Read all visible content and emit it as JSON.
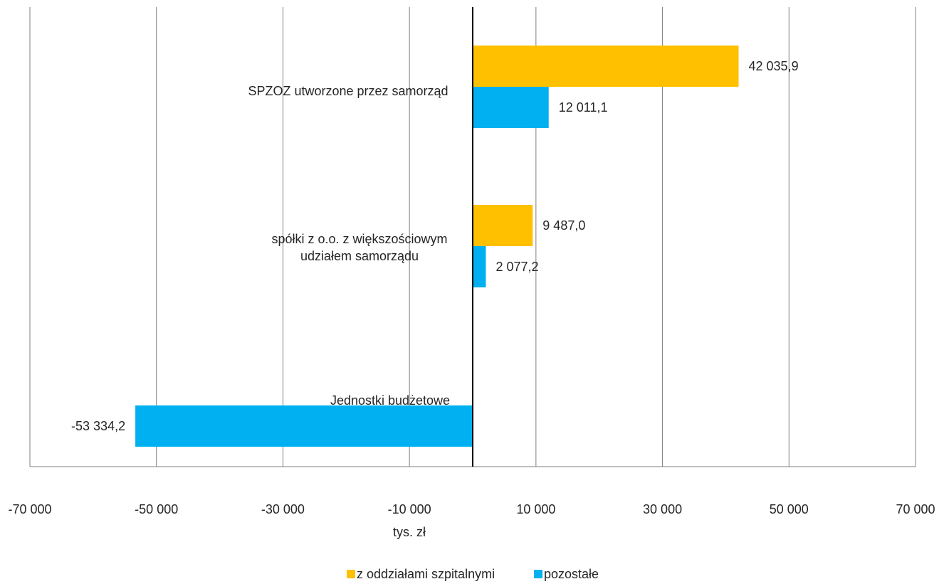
{
  "chart_data": {
    "type": "bar",
    "orientation": "horizontal",
    "categories": [
      "SPZOZ utworzone przez samorząd",
      "spółki z o.o. z większościowym udziałem samorządu",
      "Jednostki budżetowe"
    ],
    "category_lines": [
      [
        "SPZOZ utworzone przez samorząd"
      ],
      [
        "spółki z o.o. z większościowym",
        "udziałem samorządu"
      ],
      [
        "Jednostki budżetowe"
      ]
    ],
    "series": [
      {
        "name": "z oddziałami szpitalnymi",
        "color": "#FFC000",
        "values": [
          42035.9,
          9487.0,
          null
        ],
        "labels": [
          "42 035,9",
          "9 487,0",
          ""
        ]
      },
      {
        "name": "pozostałe",
        "color": "#00B0F0",
        "values": [
          12011.1,
          2077.2,
          -53334.2
        ],
        "labels": [
          "12 011,1",
          "2 077,2",
          "-53 334,2"
        ]
      }
    ],
    "xlabel": "tys. zł",
    "xlim": [
      -70000,
      70000
    ],
    "xticks": [
      -70000,
      -50000,
      -30000,
      -10000,
      10000,
      30000,
      50000,
      70000
    ],
    "xtick_labels": [
      "-70 000",
      "-50 000",
      "-30 000",
      "-10 000",
      "10 000",
      "30 000",
      "50 000",
      "70 000"
    ],
    "grid": true,
    "legend_position": "bottom"
  }
}
